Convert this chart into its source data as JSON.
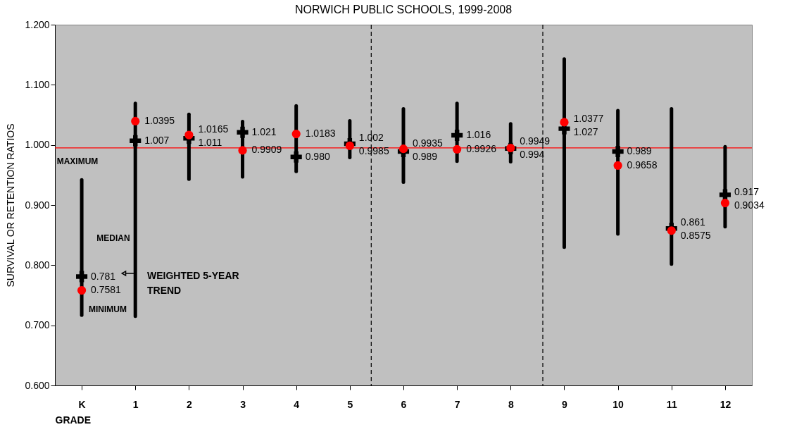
{
  "chart_data": {
    "type": "scatter",
    "title": "NORWICH PUBLIC SCHOOLS, 1999-2008",
    "xlabel": "GRADE",
    "ylabel": "SURVIVAL OR RETENTION RATIOS",
    "x": [
      0,
      1,
      2,
      3,
      4,
      5,
      6,
      7,
      8,
      9,
      10,
      11,
      12
    ],
    "xlim": [
      -0.5,
      12.5
    ],
    "xticks": [
      {
        "value": 0,
        "label": "K"
      },
      1,
      2,
      3,
      4,
      5,
      6,
      7,
      8,
      9,
      10,
      11,
      12
    ],
    "ylim": [
      0.6,
      1.2
    ],
    "yticks": [
      {
        "value": 0.6,
        "label": "0.600"
      },
      {
        "value": 0.7,
        "label": "0.700"
      },
      {
        "value": 0.8,
        "label": "0.800"
      },
      {
        "value": 0.9,
        "label": "0.900"
      },
      {
        "value": 1.0,
        "label": "1.000"
      },
      {
        "value": 1.1,
        "label": "1.100"
      },
      {
        "value": 1.2,
        "label": "1.200"
      }
    ],
    "series": [
      {
        "color": "#000000",
        "marker": "cross",
        "values": [
          0.781,
          1.007,
          1.011,
          1.021,
          0.98,
          1.002,
          0.989,
          1.016,
          0.994,
          1.027,
          0.989,
          0.861,
          0.917
        ],
        "value_labels": [
          "0.781",
          "1.007",
          "1.011",
          "1.021",
          "0.980",
          "1.002",
          "0.989",
          "1.016",
          "0.994",
          "1.027",
          "0.989",
          "0.861",
          "0.917"
        ],
        "errors": [
          [
            0.717,
            0.942
          ],
          [
            0.715,
            1.069
          ],
          [
            0.943,
            1.051
          ],
          [
            0.947,
            1.039
          ],
          [
            0.956,
            1.065
          ],
          [
            0.979,
            1.04
          ],
          [
            0.938,
            1.06
          ],
          [
            0.973,
            1.069
          ],
          [
            0.972,
            1.035
          ],
          [
            0.83,
            1.143
          ],
          [
            0.852,
            1.057
          ],
          [
            0.802,
            1.06
          ],
          [
            0.864,
            0.997
          ]
        ]
      },
      {
        "color": "#ff0000",
        "marker": "circle",
        "values": [
          0.7581,
          1.0395,
          1.0165,
          0.9909,
          1.0183,
          0.9985,
          0.9935,
          0.9926,
          0.9949,
          1.0377,
          0.9658,
          0.8575,
          0.9034
        ],
        "value_labels": [
          "0.7581",
          "1.0395",
          "1.0165",
          "0.9909",
          "1.0183",
          "0.9985",
          "0.9935",
          "0.9926",
          "0.9949",
          "1.0377",
          "0.9658",
          "0.8575",
          "0.9034"
        ]
      }
    ],
    "ref_lines": [
      {
        "axis": "y",
        "value": 0.995,
        "color": "#ff0000"
      },
      {
        "axis": "x",
        "value": 5.4,
        "color": "#000000",
        "line_style": "dashed"
      },
      {
        "axis": "x",
        "value": 8.6,
        "color": "#000000",
        "line_style": "dashed"
      }
    ],
    "annotations": [
      "MAXIMUM",
      "MEDIAN",
      "MINIMUM",
      "WEIGHTED 5-YEAR TREND"
    ]
  }
}
